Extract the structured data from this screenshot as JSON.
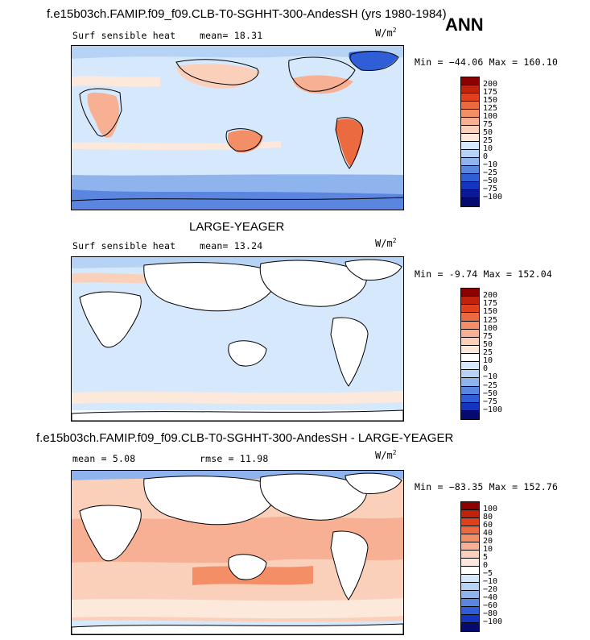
{
  "season": "ANN",
  "units": "W/m",
  "units_sup": "2",
  "panels": [
    {
      "title": "f.e15b03ch.FAMIP.f09_f09.CLB-T0-SGHHT-300-AndesSH (yrs 1980-1984)",
      "field": "Surf sensible heat",
      "stat1": "mean=  18.31",
      "stat2": "",
      "minmax": "Min = −44.06  Max = 160.10",
      "levels": [
        "200",
        "175",
        "150",
        "125",
        "100",
        "75",
        "50",
        "25",
        "10",
        "0",
        "−10",
        "−25",
        "−50",
        "−75",
        "−100"
      ],
      "colors": [
        "#8b0000",
        "#c1220e",
        "#e0401c",
        "#ec6a40",
        "#f38e66",
        "#f8b094",
        "#fbd0ba",
        "#fde9dc",
        "#d6e8fb",
        "#b6d3f6",
        "#8fb3ec",
        "#5a86e0",
        "#2f5ed6",
        "#1435c0",
        "#0a1a96",
        "#060a6e"
      ]
    },
    {
      "title": "LARGE-YEAGER",
      "field": "Surf sensible heat",
      "stat1": "mean=  13.24",
      "stat2": "",
      "minmax": "Min =  -9.74  Max = 152.04",
      "levels": [
        "200",
        "175",
        "150",
        "125",
        "100",
        "75",
        "50",
        "25",
        "10",
        "0",
        "−10",
        "−25",
        "−50",
        "−75",
        "−100"
      ],
      "colors": [
        "#8b0000",
        "#c1220e",
        "#e0401c",
        "#ec6a40",
        "#f38e66",
        "#f8b094",
        "#fbd0ba",
        "#fde9dc",
        "#ffffff",
        "#d6e8fb",
        "#b6d3f6",
        "#8fb3ec",
        "#5a86e0",
        "#2f5ed6",
        "#1435c0",
        "#060a6e"
      ]
    },
    {
      "title": "f.e15b03ch.FAMIP.f09_f09.CLB-T0-SGHHT-300-AndesSH - LARGE-YEAGER",
      "field": "mean =   5.08",
      "stat1": "rmse =  11.98",
      "stat2": "",
      "minmax": "Min = −83.35  Max = 152.76",
      "levels": [
        "100",
        "80",
        "60",
        "40",
        "20",
        "10",
        "5",
        "0",
        "−5",
        "−10",
        "−20",
        "−40",
        "−60",
        "−80",
        "−100"
      ],
      "colors": [
        "#8b0000",
        "#c1220e",
        "#e0401c",
        "#ec6a40",
        "#f38e66",
        "#f8b094",
        "#fbd0ba",
        "#fde9dc",
        "#ffffff",
        "#d6e8fb",
        "#b6d3f6",
        "#8fb3ec",
        "#5a86e0",
        "#2f5ed6",
        "#1435c0",
        "#060a6e"
      ]
    }
  ]
}
